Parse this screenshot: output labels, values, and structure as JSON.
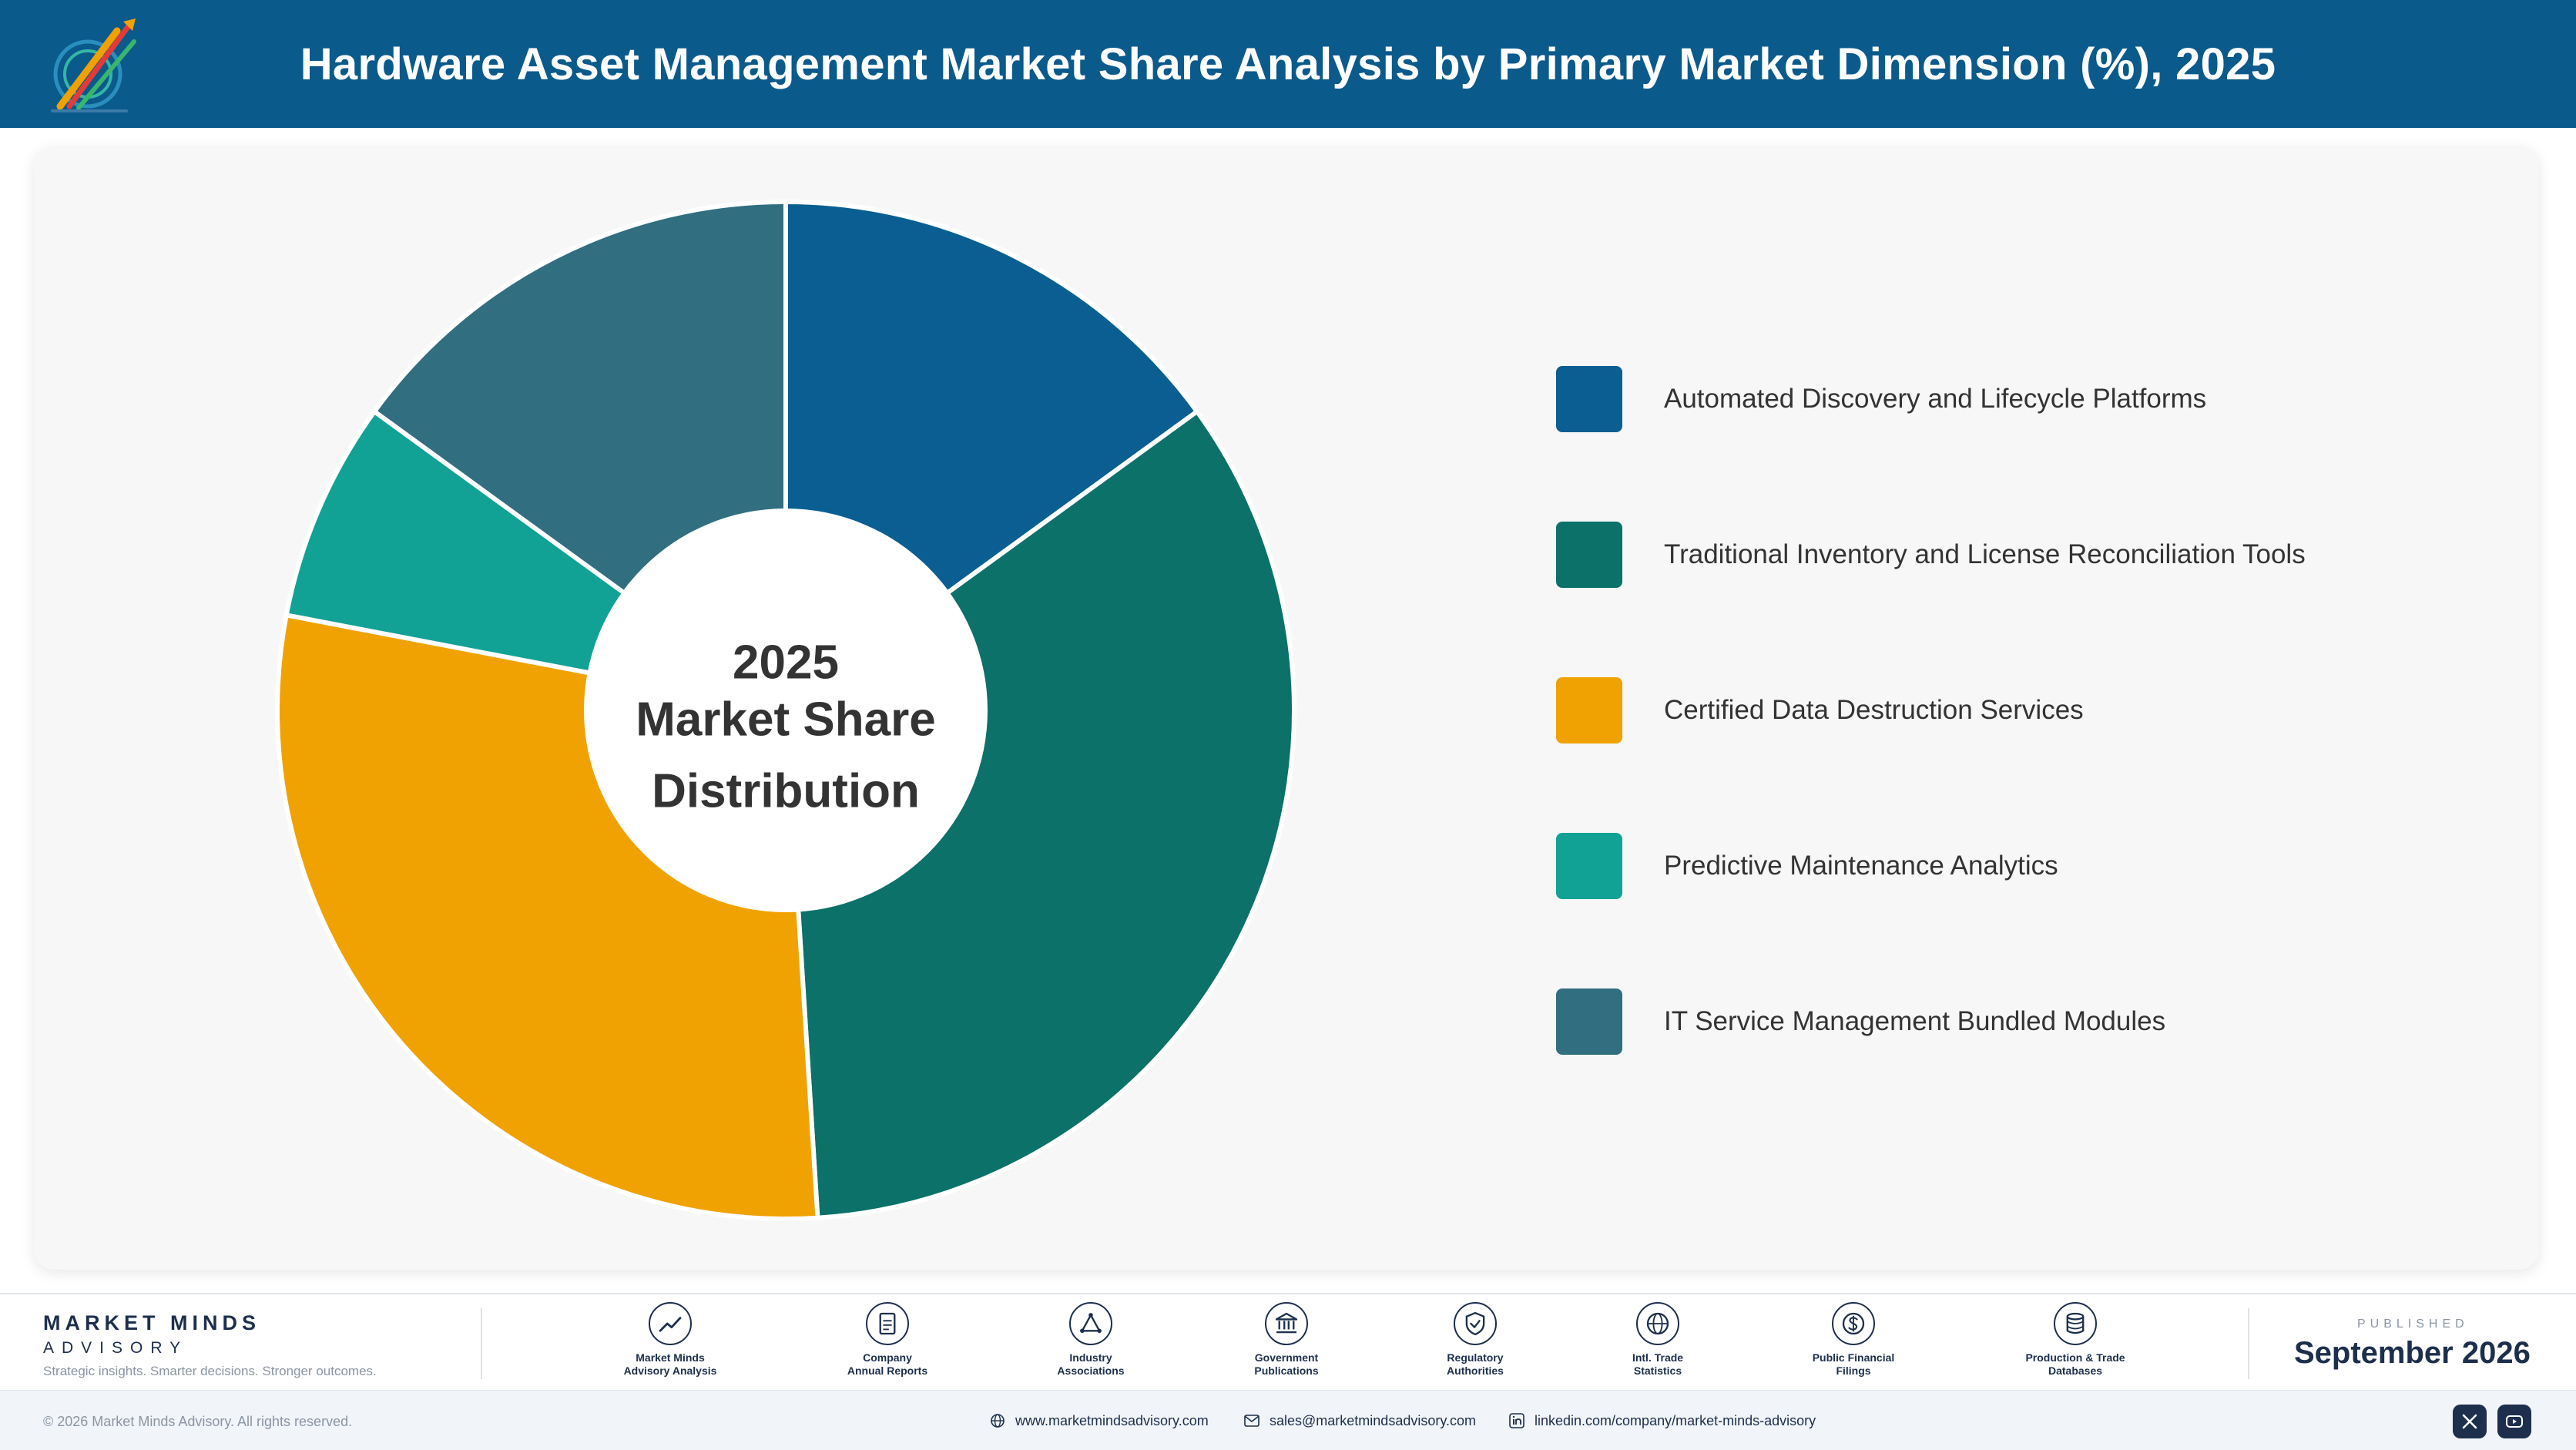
{
  "header": {
    "title": "Hardware Asset Management Market Share Analysis by Primary Market Dimension (%), 2025"
  },
  "chart_data": {
    "type": "pie",
    "center_label": [
      "2025",
      "Market Share",
      "Distribution"
    ],
    "categories": [
      "Automated Discovery and Lifecycle Platforms",
      "Traditional Inventory and License Reconciliation Tools",
      "Certified Data Destruction Services",
      "Predictive Maintenance Analytics",
      "IT Service Management Bundled Modules"
    ],
    "values": [
      15,
      34,
      29,
      7,
      15
    ],
    "colors": [
      "#0a5e91",
      "#0b7169",
      "#f0a202",
      "#12a295",
      "#306e80"
    ],
    "legend_position": "right"
  },
  "footer": {
    "brand_name": "MARKET MINDS",
    "brand_sub": "ADVISORY",
    "tagline": "Strategic insights. Smarter decisions. Stronger outcomes.",
    "sources": [
      {
        "label": "Market Minds\nAdvisory Analysis",
        "icon": "trend-icon"
      },
      {
        "label": "Company\nAnnual Reports",
        "icon": "document-icon"
      },
      {
        "label": "Industry\nAssociations",
        "icon": "network-icon"
      },
      {
        "label": "Government\nPublications",
        "icon": "government-icon"
      },
      {
        "label": "Regulatory\nAuthorities",
        "icon": "shield-icon"
      },
      {
        "label": "Intl. Trade\nStatistics",
        "icon": "globe-icon"
      },
      {
        "label": "Public Financial\nFilings",
        "icon": "dollar-icon"
      },
      {
        "label": "Production & Trade\nDatabases",
        "icon": "database-icon"
      }
    ],
    "published_label": "PUBLISHED",
    "published_date": "September 2026"
  },
  "bottom": {
    "copyright": "© 2026 Market Minds Advisory. All rights reserved.",
    "website": "www.marketmindsadvisory.com",
    "email": "sales@marketmindsadvisory.com",
    "linkedin": "linkedin.com/company/market-minds-advisory"
  }
}
